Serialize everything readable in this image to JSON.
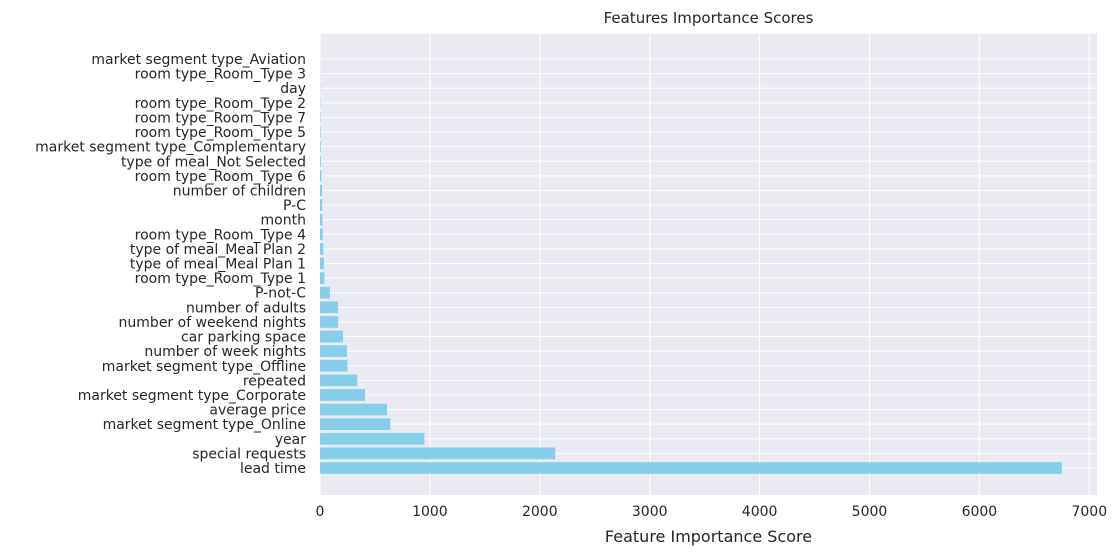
{
  "chart_data": {
    "type": "bar",
    "orientation": "horizontal",
    "title": "Features Importance Scores",
    "xlabel": "Feature Importance Score",
    "ylabel": "",
    "xlim": [
      0,
      7070
    ],
    "xticks": [
      0,
      1000,
      2000,
      3000,
      4000,
      5000,
      6000,
      7000
    ],
    "grid": true,
    "bar_color": "#87CEEB",
    "background_color": "#EAEAF2",
    "grid_color": "#FFFFFF",
    "categories": [
      "lead time",
      "special requests",
      "year",
      "market segment type_Online",
      "average price",
      "market segment type_Corporate",
      "repeated",
      "market segment type_Offline",
      "number of week nights",
      "car parking space",
      "number of weekend nights",
      "number of adults",
      "P-not-C",
      "room type_Room_Type 1",
      "type of meal_Meal Plan 1",
      "type of meal_Meal Plan 2",
      "room type_Room_Type 4",
      "month",
      "P-C",
      "number of children",
      "room type_Room_Type 6",
      "type of meal_Not Selected",
      "market segment type_Complementary",
      "room type_Room_Type 5",
      "room type_Room_Type 7",
      "room type_Room_Type 2",
      "day",
      "room type_Room_Type 3",
      "market segment type_Aviation"
    ],
    "values": [
      6750,
      2140,
      950,
      640,
      610,
      410,
      340,
      250,
      245,
      210,
      165,
      165,
      90,
      40,
      35,
      30,
      25,
      22,
      20,
      18,
      12,
      8,
      6,
      5,
      4,
      3,
      2,
      1,
      0.5
    ]
  }
}
